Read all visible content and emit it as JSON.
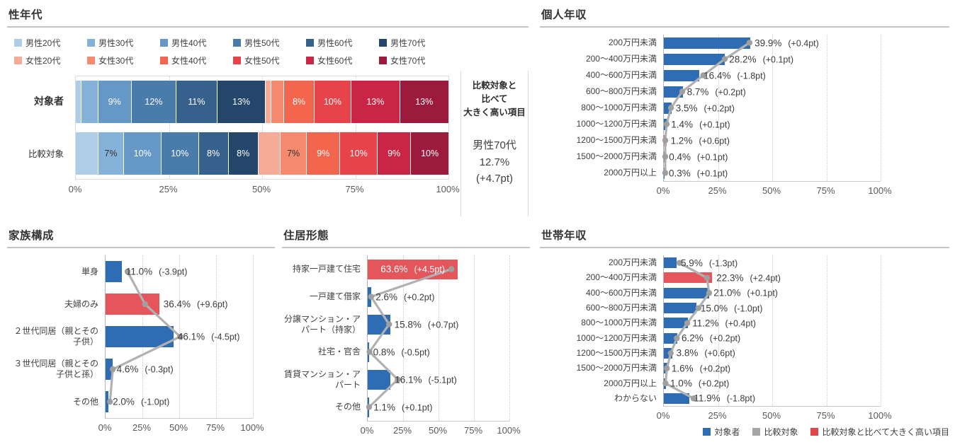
{
  "colors": {
    "bar_blue": "#2e6db4",
    "bar_red": "#e4565c",
    "legend_red": "#e0464c",
    "comparison_gray": "#a6a6a6",
    "line_gray": "#b1b1b1",
    "dot_gray": "#9f9f9f",
    "text": "#3f3f3f",
    "axis_text": "#595959"
  },
  "chart_data": [
    {
      "id": "sex_age",
      "type": "stacked-bar",
      "title": "性年代",
      "xlim": [
        0,
        100
      ],
      "x_ticks": [
        "0%",
        "25%",
        "50%",
        "75%",
        "100%"
      ],
      "series": [
        {
          "name": "男性20代",
          "color": "#aecde6"
        },
        {
          "name": "男性30代",
          "color": "#85b2d9"
        },
        {
          "name": "男性40代",
          "color": "#6598c6"
        },
        {
          "name": "男性50代",
          "color": "#4a7cab"
        },
        {
          "name": "男性60代",
          "color": "#37618d"
        },
        {
          "name": "男性70代",
          "color": "#24466b"
        },
        {
          "name": "女性20代",
          "color": "#f6ab99"
        },
        {
          "name": "女性30代",
          "color": "#f58a6e"
        },
        {
          "name": "女性40代",
          "color": "#f3654c"
        },
        {
          "name": "女性50代",
          "color": "#e6434a"
        },
        {
          "name": "女性60代",
          "color": "#c82644"
        },
        {
          "name": "女性70代",
          "color": "#9c1b3c"
        }
      ],
      "rows": [
        {
          "label": "対象者",
          "bold": true,
          "values": [
            1.5,
            4.5,
            9,
            12,
            11,
            13,
            1.5,
            3.5,
            8,
            10,
            13,
            13
          ],
          "value_labels": [
            "",
            "",
            "9%",
            "12%",
            "11%",
            "13%",
            "",
            "",
            "8%",
            "10%",
            "13%",
            "13%"
          ]
        },
        {
          "label": "比較対象",
          "bold": false,
          "values": [
            6,
            7,
            10,
            10,
            8,
            8,
            6,
            7,
            9,
            10,
            9,
            10
          ],
          "value_labels": [
            "",
            "7%",
            "10%",
            "10%",
            "8%",
            "8%",
            "",
            "7%",
            "9%",
            "10%",
            "9%",
            "10%"
          ]
        }
      ],
      "note": {
        "heading_lines": [
          "比較対象と",
          "比べて",
          "大きく高い項目"
        ],
        "value_lines": [
          "男性70代",
          "12.7%",
          "(+4.7pt)"
        ]
      }
    },
    {
      "id": "personal_income",
      "type": "bar",
      "title": "個人年収",
      "xlim": [
        0,
        100
      ],
      "x_ticks": [
        "0%",
        "25%",
        "50%",
        "75%",
        "100%"
      ],
      "categories": [
        "200万円未満",
        "200～400万円未満",
        "400～600万円未満",
        "600～800万円未満",
        "800～1000万円未満",
        "1000～1200万円未満",
        "1200～1500万円未満",
        "1500～2000万円未満",
        "2000万円以上"
      ],
      "values": [
        39.9,
        28.2,
        16.4,
        8.7,
        3.5,
        1.4,
        1.2,
        0.4,
        0.3
      ],
      "diffs_pt": [
        0.4,
        0.1,
        -1.8,
        0.2,
        0.2,
        0.1,
        0.6,
        0.1,
        0.1
      ],
      "highlight_indices": [
        6
      ]
    },
    {
      "id": "family_structure",
      "type": "bar",
      "title": "家族構成",
      "xlim": [
        0,
        100
      ],
      "x_ticks": [
        "0%",
        "25%",
        "50%",
        "75%",
        "100%"
      ],
      "categories": [
        "単身",
        "夫婦のみ",
        "２世代同居（親とその子供）",
        "３世代同居（親とその子供と孫）",
        "その他"
      ],
      "values": [
        11.0,
        36.4,
        46.1,
        4.6,
        2.0
      ],
      "diffs_pt": [
        -3.9,
        9.6,
        -4.5,
        -0.3,
        -1.0
      ],
      "highlight_indices": [
        1
      ]
    },
    {
      "id": "housing_type",
      "type": "bar",
      "title": "住居形態",
      "xlim": [
        0,
        100
      ],
      "x_ticks": [
        "0%",
        "25%",
        "50%",
        "75%",
        "100%"
      ],
      "categories": [
        "持家一戸建て住宅",
        "一戸建て借家",
        "分譲マンション・アパート（持家）",
        "社宅・官舎",
        "賃貸マンション・アパート",
        "その他"
      ],
      "values": [
        63.6,
        2.6,
        15.8,
        0.8,
        16.1,
        1.1
      ],
      "diffs_pt": [
        4.5,
        0.2,
        0.7,
        -0.5,
        -5.1,
        0.1
      ],
      "highlight_indices": [
        0
      ],
      "inside_label_indices": [
        0
      ]
    },
    {
      "id": "household_income",
      "type": "bar",
      "title": "世帯年収",
      "xlim": [
        0,
        100
      ],
      "x_ticks": [
        "0%",
        "25%",
        "50%",
        "75%",
        "100%"
      ],
      "categories": [
        "200万円未満",
        "200～400万円未満",
        "400～600万円未満",
        "600～800万円未満",
        "800～1000万円未満",
        "1000～1200万円未満",
        "1200～1500万円未満",
        "1500～2000万円未満",
        "2000万円以上",
        "わからない"
      ],
      "values": [
        5.9,
        22.3,
        21.0,
        15.0,
        11.2,
        6.2,
        3.8,
        1.6,
        1.0,
        11.9
      ],
      "diffs_pt": [
        -1.3,
        2.4,
        0.1,
        -1.0,
        0.4,
        0.2,
        0.6,
        0.2,
        0.2,
        -1.8
      ],
      "highlight_indices": [
        1
      ],
      "legend": [
        {
          "label": "対象者",
          "color": "#2e6db4"
        },
        {
          "label": "比較対象",
          "color": "#a6a6a6"
        },
        {
          "label": "比較対象と比べて大きく高い項目",
          "color": "#e0464c"
        }
      ]
    }
  ]
}
